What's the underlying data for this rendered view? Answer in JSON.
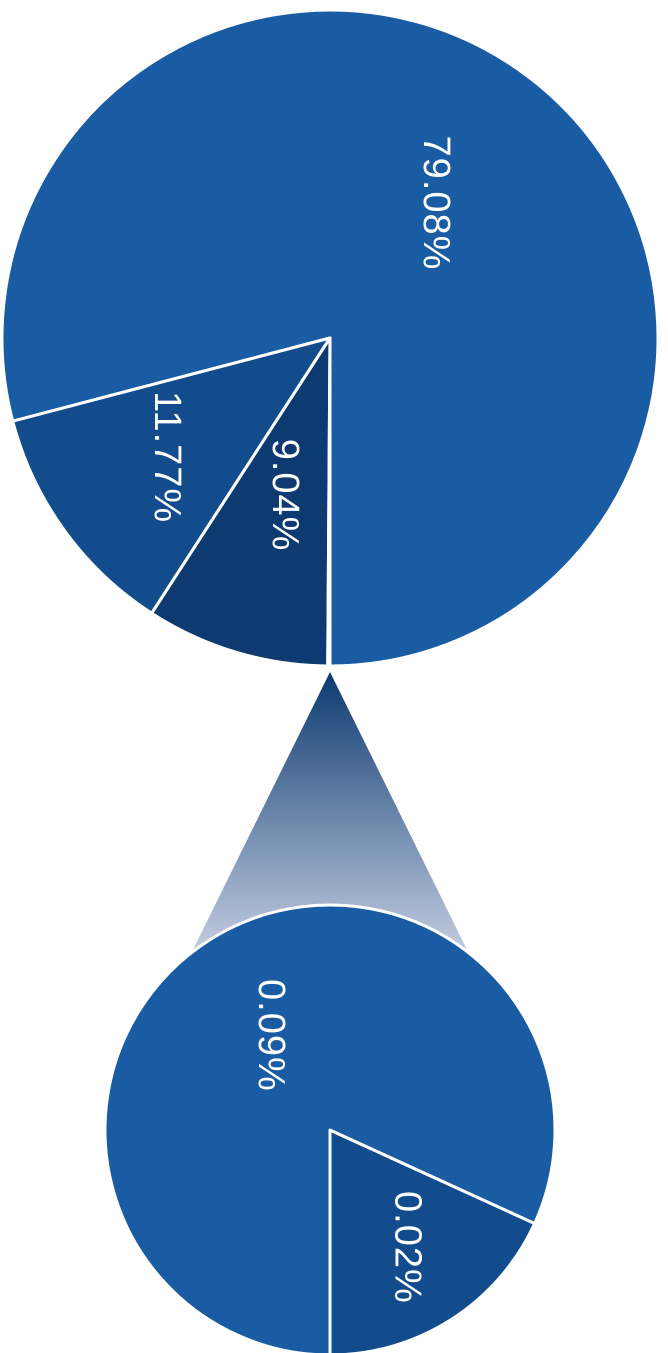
{
  "colors": {
    "main_slice": "#1a5ca3",
    "mid_slice": "#124c8d",
    "dark_slice": "#0d3a70",
    "stroke": "#ffffff",
    "connector_top": "#0d3a70",
    "connector_bottom": "#c3cde0"
  },
  "chart_data": [
    {
      "type": "pie",
      "categories": [
        "",
        "",
        "",
        ""
      ],
      "values": [
        79.08,
        11.77,
        9.04,
        0.11
      ],
      "labels": [
        "79.08%",
        "11.77%",
        "9.04%",
        ""
      ],
      "exploded_into": 1
    },
    {
      "type": "pie",
      "categories": [
        "",
        ""
      ],
      "values": [
        0.09,
        0.02
      ],
      "labels": [
        "0.09%",
        "0.02%"
      ]
    }
  ]
}
